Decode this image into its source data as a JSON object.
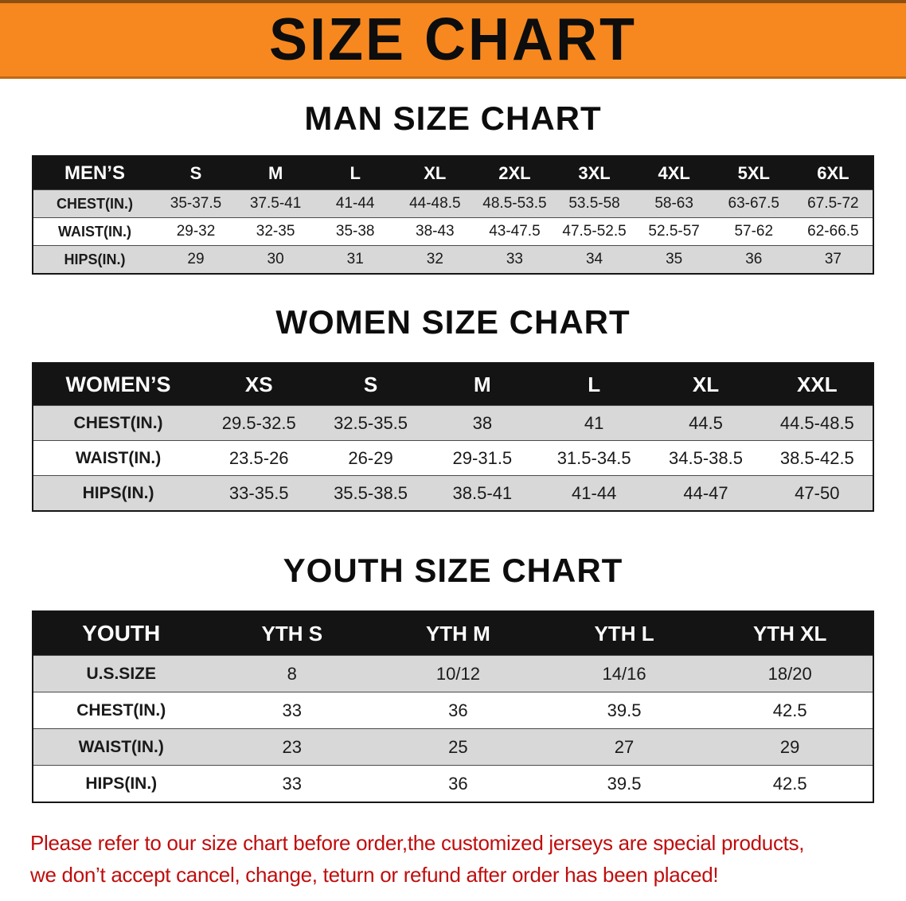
{
  "banner": {
    "title": "SIZE CHART",
    "bg_color": "#f6881f",
    "text_color": "#0d0d0d"
  },
  "sections": [
    {
      "id": "men",
      "heading": "MAN SIZE CHART",
      "table": {
        "header": [
          "MEN’S",
          "S",
          "M",
          "L",
          "XL",
          "2XL",
          "3XL",
          "4XL",
          "5XL",
          "6XL"
        ],
        "rows": [
          [
            "CHEST(IN.)",
            "35-37.5",
            "37.5-41",
            "41-44",
            "44-48.5",
            "48.5-53.5",
            "53.5-58",
            "58-63",
            "63-67.5",
            "67.5-72"
          ],
          [
            "WAIST(IN.)",
            "29-32",
            "32-35",
            "35-38",
            "38-43",
            "43-47.5",
            "47.5-52.5",
            "52.5-57",
            "57-62",
            "62-66.5"
          ],
          [
            "HIPS(IN.)",
            "29",
            "30",
            "31",
            "32",
            "33",
            "34",
            "35",
            "36",
            "37"
          ]
        ]
      }
    },
    {
      "id": "women",
      "heading": "WOMEN SIZE CHART",
      "table": {
        "header": [
          "WOMEN’S",
          "XS",
          "S",
          "M",
          "L",
          "XL",
          "XXL"
        ],
        "rows": [
          [
            "CHEST(IN.)",
            "29.5-32.5",
            "32.5-35.5",
            "38",
            "41",
            "44.5",
            "44.5-48.5"
          ],
          [
            "WAIST(IN.)",
            "23.5-26",
            "26-29",
            "29-31.5",
            "31.5-34.5",
            "34.5-38.5",
            "38.5-42.5"
          ],
          [
            "HIPS(IN.)",
            "33-35.5",
            "35.5-38.5",
            "38.5-41",
            "41-44",
            "44-47",
            "47-50"
          ]
        ]
      }
    },
    {
      "id": "youth",
      "heading": "YOUTH SIZE CHART",
      "table": {
        "header": [
          "YOUTH",
          "YTH S",
          "YTH M",
          "YTH L",
          "YTH XL"
        ],
        "rows": [
          [
            "U.S.SIZE",
            "8",
            "10/12",
            "14/16",
            "18/20"
          ],
          [
            "CHEST(IN.)",
            "33",
            "36",
            "39.5",
            "42.5"
          ],
          [
            "WAIST(IN.)",
            "23",
            "25",
            "27",
            "29"
          ],
          [
            "HIPS(IN.)",
            "33",
            "36",
            "39.5",
            "42.5"
          ]
        ]
      }
    }
  ],
  "disclaimer": {
    "line1": "Please refer to our size chart before order,the customized jerseys are special products,",
    "line2": "we don’t accept cancel, change, teturn or refund after order has been placed!",
    "text_color": "#c00d0d"
  },
  "colors": {
    "table_header_bg": "#141414",
    "table_header_text": "#ffffff",
    "row_shaded_bg": "#d8d8d8",
    "row_plain_bg": "#ffffff"
  }
}
